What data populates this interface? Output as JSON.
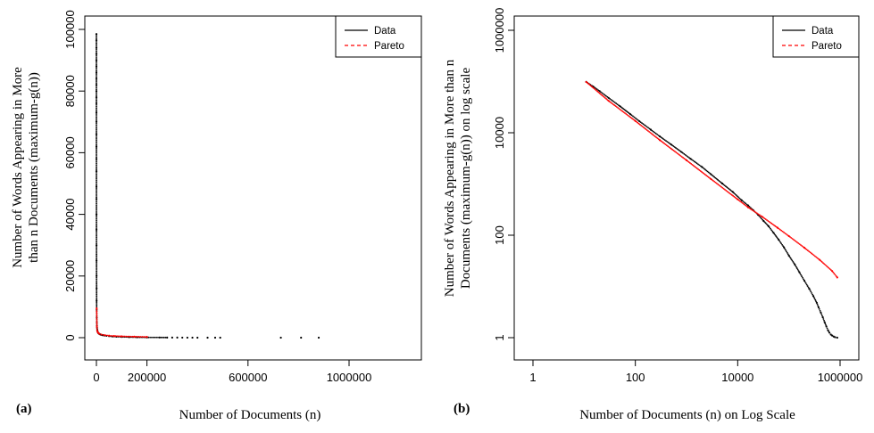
{
  "chart_data": [
    {
      "panel_label": "(a)",
      "type": "scatter",
      "xlabel": "Number of Documents (n)",
      "ylabel_lines": [
        "Number of Words Appearing in More",
        "than n Documents (maximum-g(n))"
      ],
      "xlim": [
        0,
        1100000
      ],
      "ylim": [
        0,
        100000
      ],
      "x_ticks": [
        0,
        200000,
        600000,
        1000000
      ],
      "x_tick_labels": [
        "0",
        "200000",
        "600000",
        "1000000"
      ],
      "y_ticks": [
        0,
        20000,
        40000,
        60000,
        80000,
        100000
      ],
      "y_tick_labels": [
        "0",
        "20000",
        "40000",
        "60000",
        "80000",
        "100000"
      ],
      "grid": false,
      "legend": {
        "position": "top-right",
        "entries": [
          "Data",
          "Pareto"
        ]
      },
      "series": [
        {
          "name": "Data",
          "color": "#000000",
          "style": "points",
          "x": [
            1,
            2,
            3,
            4,
            5,
            6,
            8,
            10,
            13,
            16,
            20,
            25,
            32,
            40,
            50,
            63,
            80,
            100,
            130,
            160,
            200,
            250,
            320,
            400,
            500,
            630,
            800,
            1000,
            1300,
            1600,
            2000,
            2500,
            3200,
            4000,
            5000,
            6300,
            8000,
            10000,
            13000,
            16000,
            20000,
            25000,
            32000,
            40000,
            50000,
            63000,
            80000,
            100000,
            130000,
            160000,
            200000,
            250000,
            280000,
            300000,
            320000,
            340000,
            360000,
            380000,
            400000,
            440000,
            470000,
            490000,
            730000,
            810000,
            880000
          ],
          "y": [
            98500,
            96500,
            94000,
            92000,
            90000,
            88000,
            86000,
            84000,
            82000,
            80000,
            78000,
            76000,
            73000,
            70000,
            66000,
            62000,
            58000,
            54000,
            49000,
            45000,
            40000,
            35000,
            30000,
            25000,
            20000,
            16000,
            12000,
            9000,
            6500,
            5000,
            3900,
            3200,
            2600,
            2200,
            1900,
            1650,
            1450,
            1300,
            1150,
            1020,
            900,
            800,
            700,
            600,
            500,
            400,
            320,
            250,
            180,
            130,
            90,
            60,
            45,
            35,
            26,
            20,
            15,
            11,
            8,
            6,
            4,
            3,
            2,
            1.5,
            1
          ]
        },
        {
          "name": "Pareto",
          "color": "#ff0000",
          "style": "points",
          "x": [
            1000,
            2000,
            3000,
            5000,
            8000,
            12000,
            20000,
            30000,
            50000,
            70000,
            100000,
            150000,
            200000
          ],
          "y": [
            9500,
            3500,
            2300,
            1800,
            1500,
            1250,
            1000,
            850,
            650,
            550,
            450,
            330,
            250
          ]
        }
      ]
    },
    {
      "panel_label": "(b)",
      "type": "scatter",
      "xlabel": "Number of Documents (n) on Log Scale",
      "ylabel_lines": [
        "Number of Words Appearing in More than n",
        "Documents (maximum-g(n)) on log scale"
      ],
      "x_scale": "log",
      "y_scale": "log",
      "xlim": [
        0.35,
        2000000
      ],
      "ylim": [
        0.8,
        1300000
      ],
      "x_ticks": [
        1,
        100,
        10000,
        1000000
      ],
      "x_tick_labels": [
        "1",
        "100",
        "10000",
        "1000000"
      ],
      "y_ticks": [
        1,
        100,
        10000,
        1000000
      ],
      "y_tick_labels": [
        "1",
        "100",
        "10000",
        "1000000"
      ],
      "grid": false,
      "legend": {
        "position": "top-right",
        "entries": [
          "Data",
          "Pareto"
        ]
      },
      "series": [
        {
          "name": "Data",
          "color": "#000000",
          "style": "points",
          "x": [
            11,
            15,
            20,
            30,
            50,
            80,
            120,
            200,
            300,
            500,
            800,
            1200,
            2000,
            3000,
            5000,
            8000,
            12000,
            16000,
            20000,
            25000,
            32000,
            40000,
            50000,
            63000,
            80000,
            100000,
            130000,
            160000,
            200000,
            250000,
            300000,
            350000,
            380000,
            420000,
            460000,
            500000,
            540000,
            580000,
            620000,
            660000,
            700000,
            750000,
            800000,
            880000
          ],
          "y": [
            98500,
            80000,
            65000,
            48000,
            33000,
            23000,
            16800,
            11500,
            8500,
            5900,
            4200,
            3100,
            2150,
            1550,
            1020,
            700,
            480,
            380,
            310,
            250,
            190,
            150,
            112,
            82,
            58,
            40,
            27,
            19,
            13,
            9,
            6.5,
            4.8,
            3.9,
            3.1,
            2.5,
            2,
            1.65,
            1.4,
            1.25,
            1.15,
            1.1,
            1.05,
            1.02,
            1
          ]
        },
        {
          "name": "Pareto",
          "color": "#ff0000",
          "style": "points",
          "x": [
            11,
            30,
            100,
            300,
            1000,
            3000,
            10000,
            16000,
            30000,
            60000,
            100000,
            200000,
            400000,
            700000,
            880000
          ],
          "y": [
            98000,
            42000,
            17000,
            7200,
            2900,
            1250,
            500,
            350,
            230,
            140,
            96,
            57,
            33,
            20,
            15
          ]
        }
      ]
    }
  ]
}
